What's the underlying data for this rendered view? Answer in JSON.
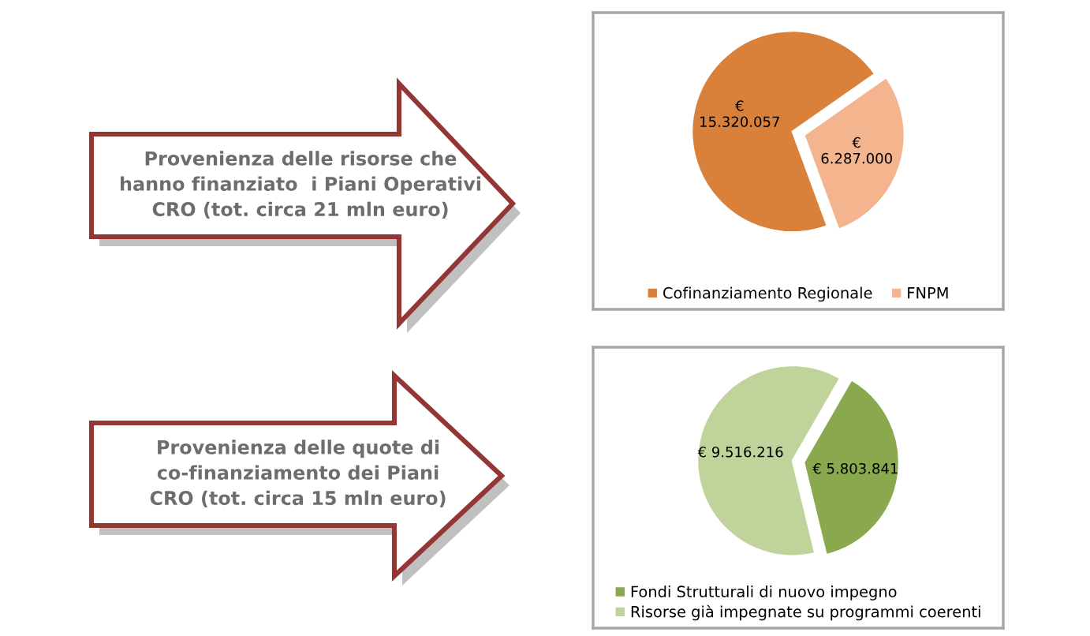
{
  "chart_data": [
    {
      "type": "pie",
      "title": "Provenienza delle risorse che\nhanno finanziato  i Piani Operativi\nCRO (tot. circa 21 mln euro)",
      "categories": [
        "Cofinanziamento Regionale",
        "FNPM"
      ],
      "values": [
        15320057,
        6287000
      ],
      "colors": [
        "#d9803a",
        "#f4b48d"
      ],
      "value_labels": [
        "€\n15.320.057",
        "€\n6.287.000"
      ],
      "legend": "bottom"
    },
    {
      "type": "pie",
      "title": "Provenienza delle quote di\nco-finanziamento dei Piani\nCRO (tot. circa 15 mln euro)",
      "categories": [
        "Fondi Strutturali di nuovo impegno",
        "Risorse già impegnate su programmi coerenti"
      ],
      "values": [
        5803841,
        9516216
      ],
      "colors": [
        "#8aa84e",
        "#c0d39b"
      ],
      "value_labels": [
        "€ 5.803.841",
        "€ 9.516.216"
      ],
      "legend": "bottom"
    }
  ]
}
